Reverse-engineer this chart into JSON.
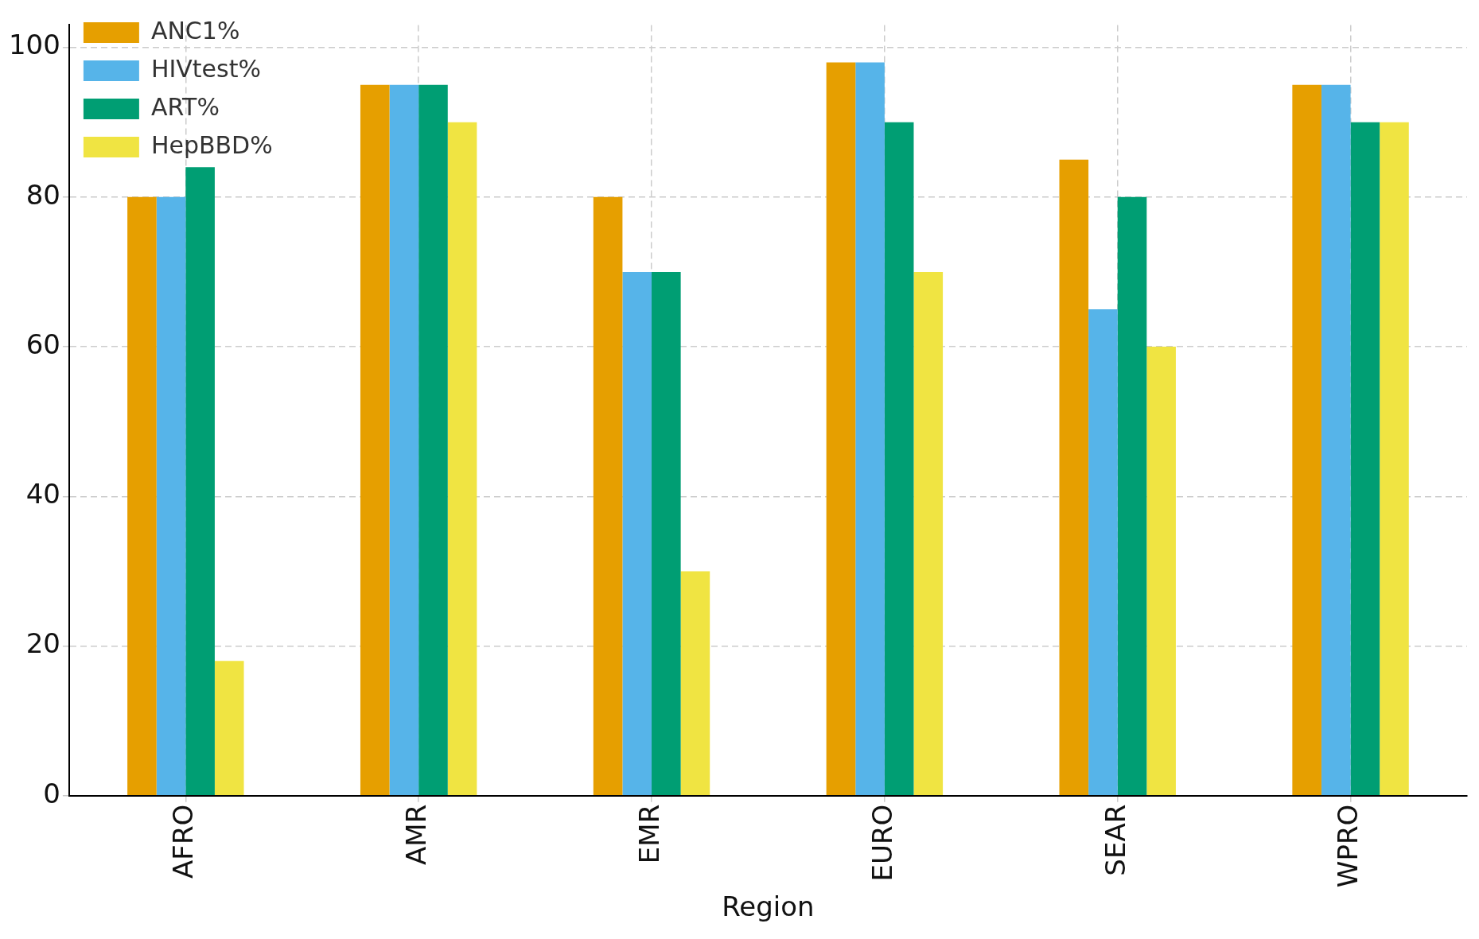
{
  "chart_data": {
    "type": "bar",
    "xlabel": "Region",
    "categories": [
      "AFRO",
      "AMR",
      "EMR",
      "EURO",
      "SEAR",
      "WPRO"
    ],
    "series": [
      {
        "name": "ANC1%",
        "color": "#e69f00",
        "values": [
          80,
          95,
          80,
          98,
          85,
          95
        ]
      },
      {
        "name": "HIVtest%",
        "color": "#56b4e9",
        "values": [
          80,
          95,
          70,
          98,
          65,
          95
        ]
      },
      {
        "name": "ART%",
        "color": "#009e73",
        "values": [
          84,
          95,
          70,
          90,
          80,
          90
        ]
      },
      {
        "name": "HepBBD%",
        "color": "#f0e442",
        "values": [
          18,
          90,
          30,
          70,
          60,
          90
        ]
      }
    ],
    "ylim": [
      0,
      103
    ],
    "yticks": [
      0,
      20,
      40,
      60,
      80,
      100
    ],
    "grid": true,
    "legend": "top left"
  }
}
